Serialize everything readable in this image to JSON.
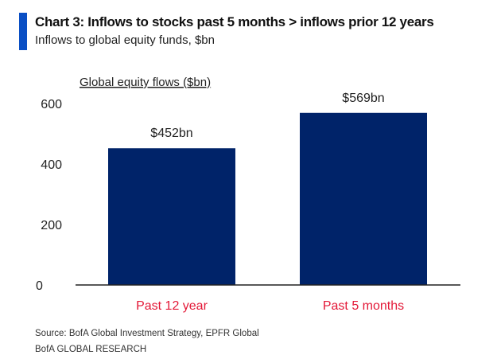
{
  "header": {
    "title": "Chart 3: Inflows to stocks past 5 months > inflows prior 12 years",
    "subtitle": "Inflows to global equity funds, $bn"
  },
  "chart_data": {
    "type": "bar",
    "ylabel": "Global equity flows ($bn)",
    "categories": [
      "Past 12 year",
      "Past 5 months"
    ],
    "values": [
      452,
      569
    ],
    "data_labels": [
      "$452bn",
      "$569bn"
    ],
    "yticks": [
      0,
      200,
      400,
      600
    ],
    "ylim": [
      0,
      600
    ],
    "grid": false,
    "bar_color": "#002369",
    "category_label_color": "#e31837"
  },
  "footer": {
    "source": "Source:  BofA Global Investment Strategy, EPFR Global",
    "brand": "BofA GLOBAL RESEARCH"
  },
  "colors": {
    "accent": "#0a4fc4"
  }
}
